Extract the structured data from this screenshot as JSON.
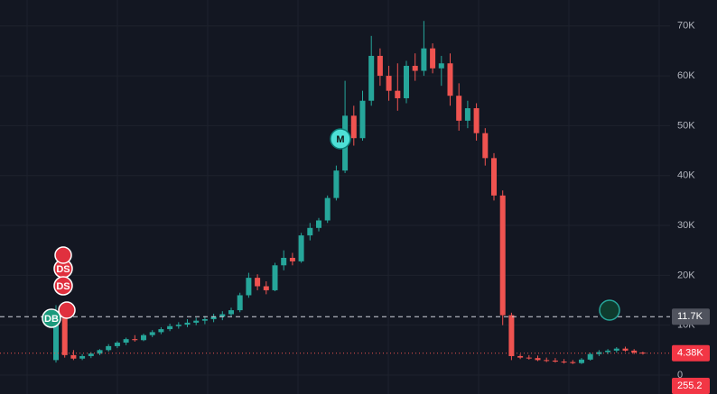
{
  "chart_data": {
    "type": "candlestick",
    "open": [
      3000,
      12000,
      4000,
      3300,
      3800,
      4300,
      5000,
      5800,
      6500,
      7200,
      7000,
      8000,
      8600,
      9200,
      9800,
      10100,
      10500,
      10900,
      11200,
      11700,
      12200,
      13000,
      16000,
      19500,
      17800,
      17000,
      22000,
      23500,
      22800,
      28000,
      29500,
      31000,
      35500,
      41000,
      52000,
      47500,
      55000,
      64000,
      60000,
      57000,
      55500,
      62000,
      61000,
      65500,
      61500,
      62500,
      56000,
      51000,
      53500,
      48500,
      43500,
      36000,
      12000,
      3800,
      3500,
      3400,
      3000,
      2900,
      2700,
      2600,
      2400,
      3100,
      4200,
      4600,
      4900,
      5300,
      4900,
      4500
    ],
    "high": [
      14000,
      13000,
      5000,
      4200,
      4600,
      5200,
      6200,
      6800,
      7500,
      8000,
      8300,
      9000,
      9600,
      10300,
      10600,
      11200,
      11500,
      11800,
      12300,
      12800,
      13500,
      16500,
      20500,
      20200,
      18800,
      22500,
      25000,
      24500,
      28500,
      30500,
      31500,
      36000,
      42000,
      59000,
      54000,
      57000,
      68000,
      65500,
      62000,
      62500,
      63000,
      64500,
      71000,
      66500,
      64000,
      64500,
      58500,
      55000,
      54500,
      49500,
      44500,
      37000,
      12500,
      4200,
      4000,
      3900,
      3500,
      3400,
      3200,
      3000,
      3400,
      4500,
      5000,
      5200,
      5600,
      5700,
      5200,
      4700
    ],
    "low": [
      2500,
      3500,
      3000,
      3000,
      3400,
      4000,
      4700,
      5400,
      6000,
      6700,
      6800,
      7600,
      8200,
      8800,
      9300,
      9600,
      10000,
      10200,
      10600,
      11000,
      11800,
      12600,
      15500,
      17000,
      16200,
      16800,
      21000,
      22000,
      22500,
      27000,
      28800,
      30500,
      35000,
      40500,
      46000,
      47000,
      54000,
      58000,
      55000,
      53000,
      54500,
      59000,
      60000,
      60500,
      58000,
      54000,
      49000,
      49500,
      47000,
      42000,
      35000,
      10000,
      3000,
      3200,
      3100,
      2800,
      2600,
      2500,
      2300,
      2200,
      2200,
      2900,
      3800,
      4200,
      4500,
      4700,
      4200,
      4100
    ],
    "close": [
      12000,
      4000,
      3300,
      3800,
      4300,
      5000,
      5800,
      6500,
      7200,
      7000,
      8000,
      8600,
      9200,
      9800,
      10100,
      10500,
      10900,
      11200,
      11700,
      12200,
      13000,
      16000,
      19500,
      17800,
      17000,
      22000,
      23500,
      22800,
      28000,
      29500,
      31000,
      35500,
      41000,
      52000,
      47500,
      55000,
      64000,
      60000,
      57000,
      55500,
      62000,
      61000,
      65500,
      61500,
      62500,
      56000,
      51000,
      53500,
      48500,
      43500,
      36000,
      12000,
      3800,
      3500,
      3400,
      3000,
      2900,
      2700,
      2600,
      2400,
      3100,
      4200,
      4600,
      4900,
      5300,
      4900,
      4500,
      4380
    ],
    "up_color": "#26a69a",
    "down_color": "#ef5350",
    "ylim": [
      -3800,
      75200
    ],
    "yticks": [
      0,
      {
        "value": 10000,
        "label": "10K"
      },
      {
        "value": 20000,
        "label": "20K"
      },
      {
        "value": 30000,
        "label": "30K"
      },
      {
        "value": 40000,
        "label": "40K"
      },
      {
        "value": 50000,
        "label": "50K"
      },
      {
        "value": 60000,
        "label": "60K"
      },
      {
        "value": 70000,
        "label": "70K"
      }
    ],
    "grid": true,
    "price_lines": [
      {
        "value": 11700,
        "label": "11.7K"
      },
      {
        "value": 4380,
        "label": "4.38K"
      }
    ],
    "volume_last": 255.2,
    "markers": [
      "M",
      "DS",
      "DS",
      "DB"
    ]
  }
}
